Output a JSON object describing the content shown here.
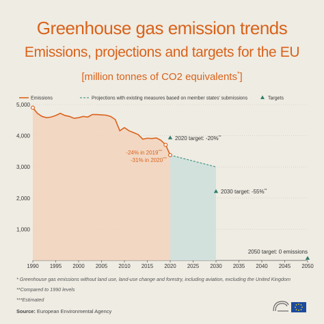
{
  "header": {
    "title": "Greenhouse gas emission trends",
    "subtitle": "Emissions, projections and targets for the EU",
    "unit_text": "[million tonnes of CO2 equivalents",
    "unit_mark": "*",
    "unit_close": "]"
  },
  "legend": {
    "emissions": "Emissions",
    "projections": "Projections with existing measures based on member states' submissions",
    "targets": "Targets"
  },
  "colors": {
    "emissions": "#d9621b",
    "emissions_fill": "#f2d3bd",
    "projections": "#4a9a8c",
    "projections_fill": "#cfe0db",
    "targets": "#2f7d6a",
    "text": "#333333",
    "grid": "#c9c4b8"
  },
  "chart_data": {
    "type": "line",
    "xlim": [
      1990,
      2050
    ],
    "ylim": [
      0,
      5000
    ],
    "x_ticks": [
      1990,
      1995,
      2000,
      2005,
      2010,
      2015,
      2020,
      2025,
      2030,
      2035,
      2040,
      2045,
      2050
    ],
    "y_ticks": [
      1000,
      2000,
      3000,
      4000,
      5000
    ],
    "y_tick_labels": [
      "1,000",
      "2,000",
      "3,000",
      "4,000",
      "5,000"
    ],
    "series": [
      {
        "name": "Emissions",
        "x": [
          1990,
          1991,
          1992,
          1993,
          1994,
          1995,
          1996,
          1997,
          1998,
          1999,
          2000,
          2001,
          2002,
          2003,
          2004,
          2005,
          2006,
          2007,
          2008,
          2009,
          2010,
          2011,
          2012,
          2013,
          2014,
          2015,
          2016,
          2017,
          2018,
          2019,
          2020
        ],
        "y": [
          4900,
          4720,
          4620,
          4580,
          4600,
          4650,
          4720,
          4650,
          4620,
          4560,
          4580,
          4620,
          4600,
          4680,
          4680,
          4670,
          4660,
          4620,
          4520,
          4160,
          4260,
          4160,
          4100,
          4040,
          3890,
          3920,
          3910,
          3930,
          3850,
          3710,
          3380
        ]
      },
      {
        "name": "Projections with existing measures based on member states' submissions",
        "x": [
          2020,
          2025,
          2030
        ],
        "y": [
          3380,
          3190,
          3000
        ]
      }
    ],
    "targets": [
      {
        "x": 2020,
        "y": 3930,
        "label": "2020 target: -20%",
        "mark": "**"
      },
      {
        "x": 2030,
        "y": 2210,
        "label": "2030 target: -55%",
        "mark": "**"
      },
      {
        "x": 2050,
        "y": 0,
        "label": "2050 target: 0 emissions",
        "mark": ""
      }
    ],
    "annotations": [
      {
        "x": 2019,
        "y": 3710,
        "label": "-24% in 2019",
        "mark": "***"
      },
      {
        "x": 2020,
        "y": 3380,
        "label": "-31% in 2020",
        "mark": "***"
      }
    ]
  },
  "footnotes": {
    "note1": "* Greenhouse gas emissions without land use, land-use change and forestry, including aviation, excluding the United Kingdom",
    "note2": "**Compared to 1990 levels",
    "note3": "***Estimated"
  },
  "source": {
    "label": "Source:",
    "text": "European Environmental Agency"
  }
}
